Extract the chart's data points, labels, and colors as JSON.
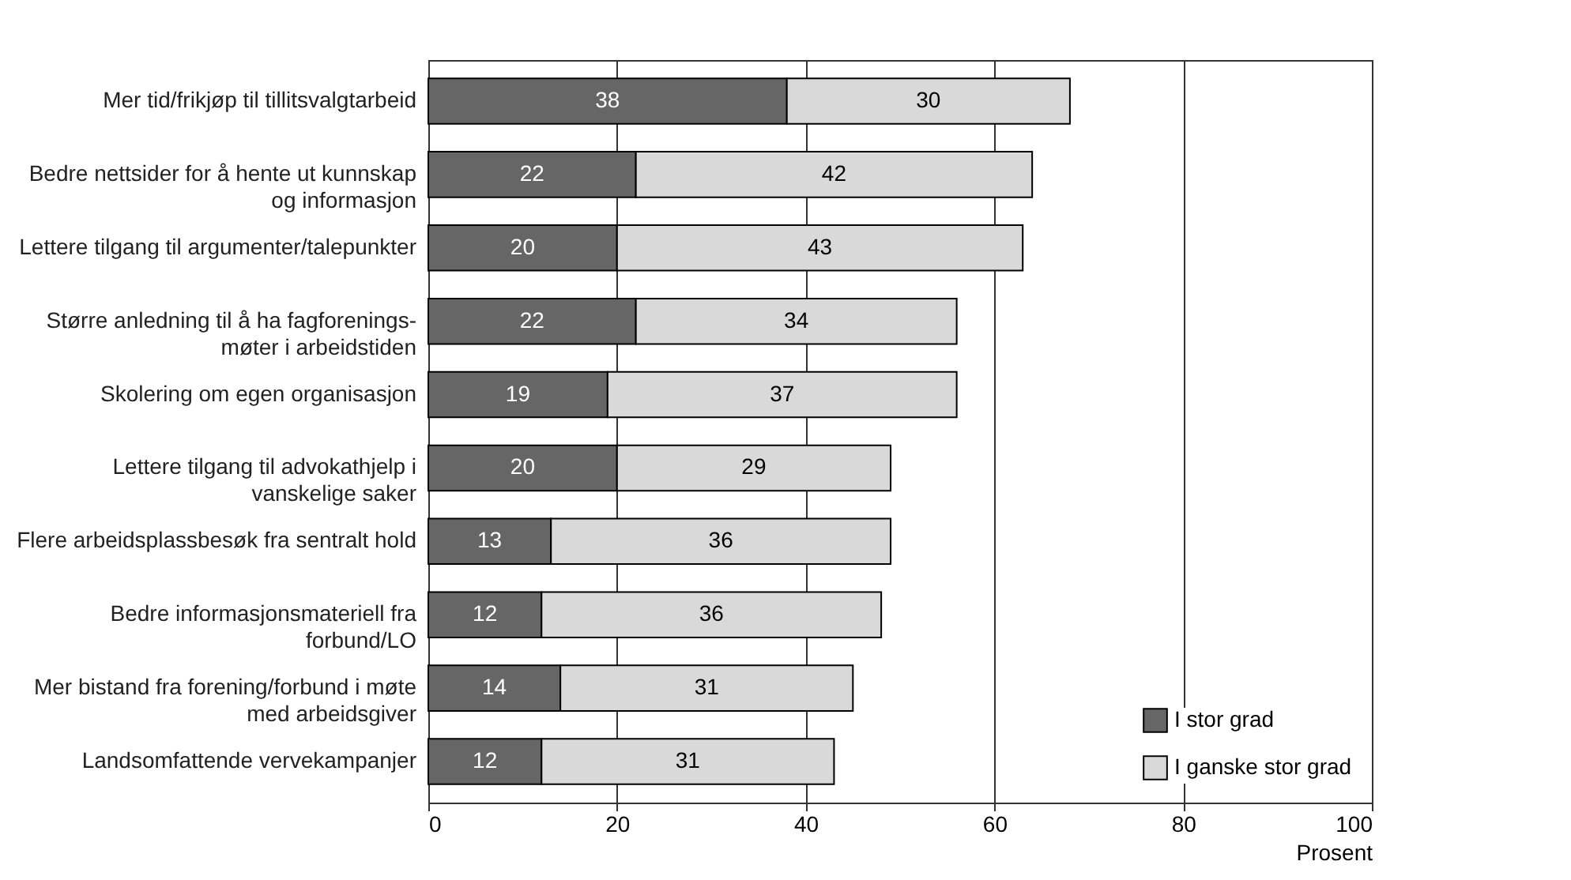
{
  "chart_data": {
    "type": "bar",
    "orientation": "horizontal",
    "stacked": true,
    "categories": [
      "Mer tid/frikjøp til tillitsvalgtarbeid",
      "Bedre nettsider for å hente ut kunnskap og informasjon",
      "Lettere tilgang til argumenter/talepunkter",
      "Større anledning til å ha fagforenings-møter i arbeidstiden",
      "Skolering om egen organisasjon",
      "Lettere tilgang til advokathjelp i vanskelige saker",
      "Flere arbeidsplassbesøk fra sentralt hold",
      "Bedre informasjonsmateriell fra forbund/LO",
      "Mer bistand fra forening/forbund i møte med arbeidsgiver",
      "Landsomfattende vervekampanjer"
    ],
    "series": [
      {
        "name": "I stor grad",
        "color": "#666666",
        "values": [
          38,
          22,
          20,
          22,
          19,
          20,
          13,
          12,
          14,
          12
        ]
      },
      {
        "name": "I ganske stor grad",
        "color": "#d9d9d9",
        "values": [
          30,
          42,
          43,
          34,
          37,
          29,
          36,
          36,
          31,
          31
        ]
      }
    ],
    "xlim": [
      0,
      100
    ],
    "xticks": [
      0,
      20,
      40,
      60,
      80,
      100
    ],
    "xlabel": "Prosent",
    "grid": "x",
    "legend": "bottom right",
    "data_labels": true
  }
}
